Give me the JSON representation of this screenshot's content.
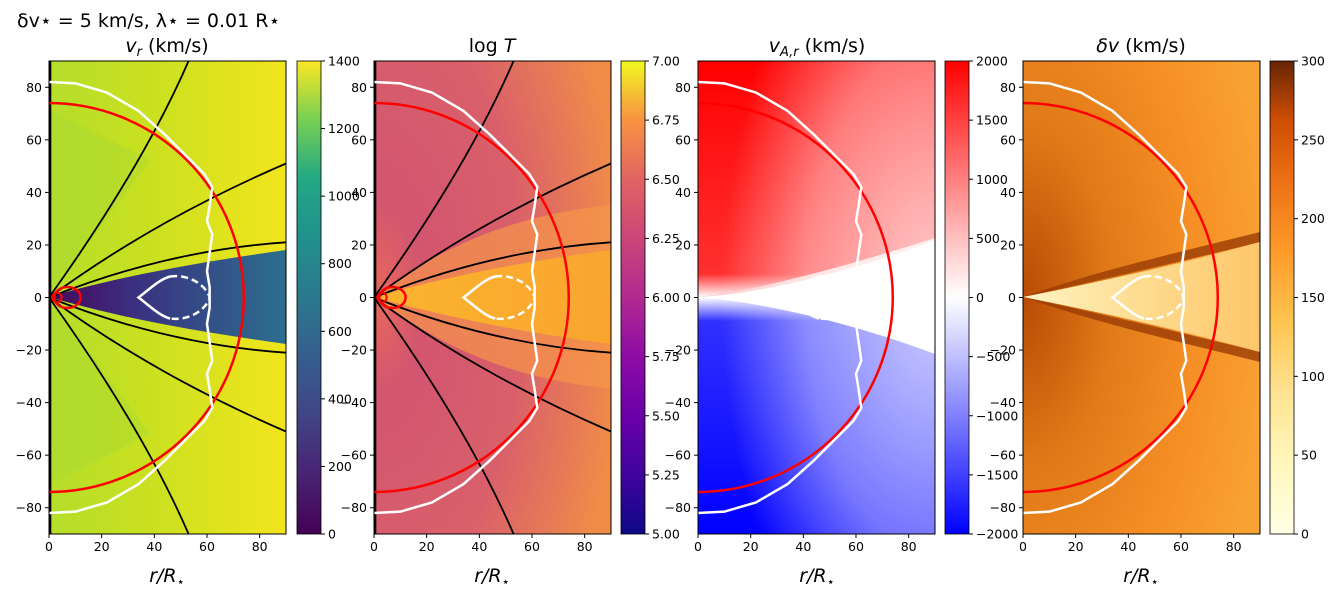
{
  "figure": {
    "suptitle": "δv⋆ = 5 km/s, λ⋆ = 0.01 R⋆"
  },
  "chart_data": [
    {
      "type": "heatmap",
      "title": "v_r (km/s)",
      "title_text": "v",
      "title_sub": "r",
      "title_unit": " (km/s)",
      "xlabel": "r/R⋆",
      "xlabel_main": "r/R",
      "xlabel_sub": "⋆",
      "xlim": [
        0,
        90
      ],
      "ylim": [
        -90,
        90
      ],
      "xticks": [
        0,
        20,
        40,
        60,
        80
      ],
      "yticks": [
        -80,
        -60,
        -40,
        -20,
        0,
        20,
        40,
        60,
        80
      ],
      "colormap": "viridis",
      "colorbar": {
        "range": [
          0,
          1400
        ],
        "ticks": [
          "0",
          "200",
          "400",
          "600",
          "800",
          "1000",
          "1200",
          "1400"
        ]
      },
      "fieldlines": true,
      "contours": [
        "white-surface",
        "white-dashed-lobe",
        "red-circle-r74",
        "red-inner-loops"
      ]
    },
    {
      "type": "heatmap",
      "title": "log T",
      "title_text": "log",
      "title_sub": "",
      "title_unit": " T",
      "xlabel": "r/R⋆",
      "xlabel_main": "r/R",
      "xlabel_sub": "⋆",
      "xlim": [
        0,
        90
      ],
      "ylim": [
        -90,
        90
      ],
      "xticks": [
        0,
        20,
        40,
        60,
        80
      ],
      "yticks": [
        -80,
        -60,
        -40,
        -20,
        0,
        20,
        40,
        60,
        80
      ],
      "colormap": "plasma",
      "colorbar": {
        "range": [
          5.0,
          7.0
        ],
        "ticks": [
          "5.00",
          "5.25",
          "5.50",
          "5.75",
          "6.00",
          "6.25",
          "6.50",
          "6.75",
          "7.00"
        ]
      },
      "fieldlines": true,
      "contours": [
        "white-surface",
        "white-dashed-lobe",
        "red-circle-r74",
        "red-inner-loops"
      ]
    },
    {
      "type": "heatmap",
      "title": "v_A,r (km/s)",
      "title_text": "v",
      "title_sub": "A,r",
      "title_unit": " (km/s)",
      "xlabel": "r/R⋆",
      "xlabel_main": "r/R",
      "xlabel_sub": "⋆",
      "xlim": [
        0,
        90
      ],
      "ylim": [
        -90,
        90
      ],
      "xticks": [
        0,
        20,
        40,
        60,
        80
      ],
      "yticks": [
        -80,
        -60,
        -40,
        -20,
        0,
        20,
        40,
        60,
        80
      ],
      "colormap": "bwr",
      "colorbar": {
        "range": [
          -2000,
          2000
        ],
        "ticks": [
          "−2000",
          "−1500",
          "−1000",
          "−500",
          "0",
          "500",
          "1000",
          "1500",
          "2000"
        ]
      },
      "fieldlines": false,
      "contours": [
        "white-surface",
        "white-dashed-lobe",
        "red-circle-r74"
      ]
    },
    {
      "type": "heatmap",
      "title": "δv (km/s)",
      "title_text": "δv",
      "title_sub": "",
      "title_unit": " (km/s)",
      "xlabel": "r/R⋆",
      "xlabel_main": "r/R",
      "xlabel_sub": "⋆",
      "xlim": [
        0,
        90
      ],
      "ylim": [
        -90,
        90
      ],
      "xticks": [
        0,
        20,
        40,
        60,
        80
      ],
      "yticks": [
        -80,
        -60,
        -40,
        -20,
        0,
        20,
        40,
        60,
        80
      ],
      "colormap": "YlOrBr",
      "colorbar": {
        "range": [
          0,
          300
        ],
        "ticks": [
          "0",
          "50",
          "100",
          "150",
          "200",
          "250",
          "300"
        ]
      },
      "fieldlines": false,
      "contours": [
        "white-surface",
        "white-dashed-lobe",
        "red-circle-r74"
      ]
    }
  ]
}
